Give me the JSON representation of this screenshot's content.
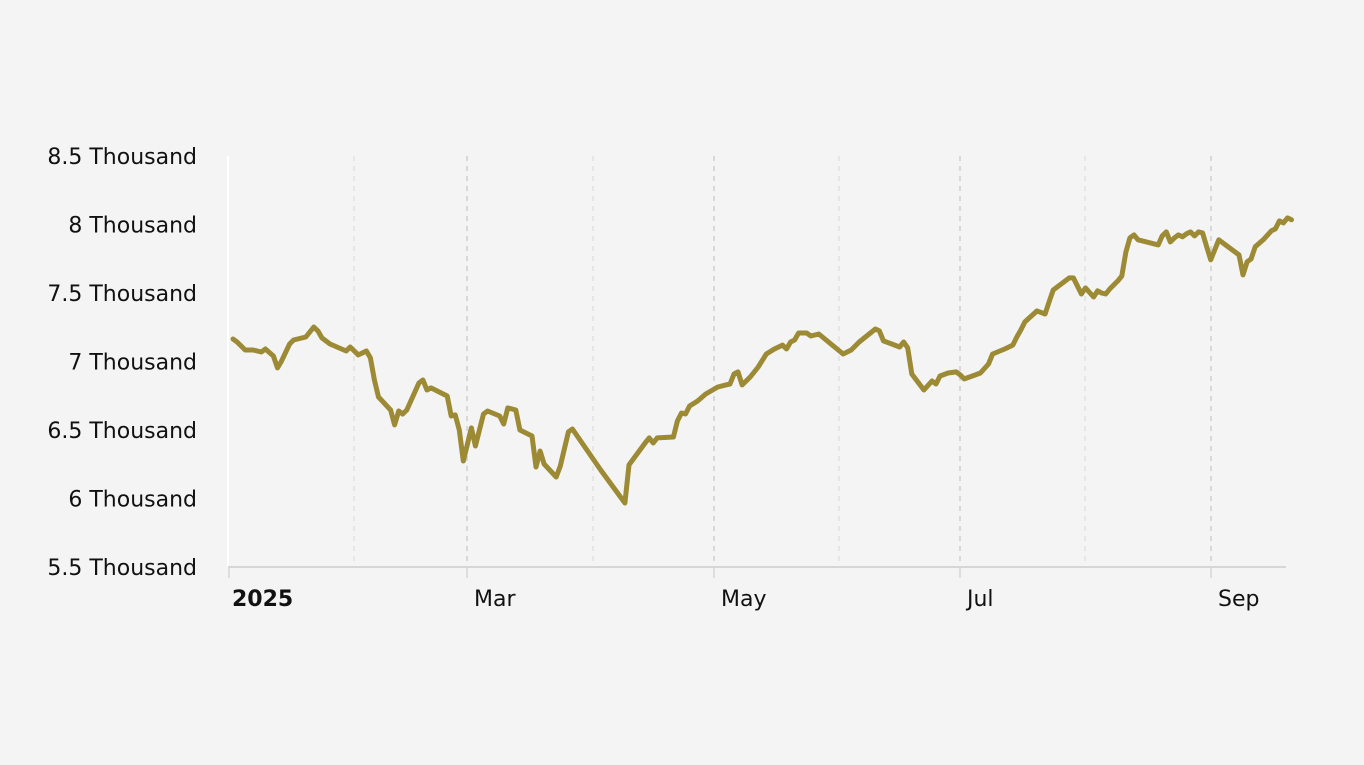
{
  "chart_data": {
    "type": "line",
    "title": "",
    "xlabel": "",
    "ylabel": "",
    "ylim": [
      5500,
      8500
    ],
    "xlim": [
      "2025-01-01",
      "2025-09-22"
    ],
    "grid": "vertical dashed",
    "line_color": "#9c8a34",
    "y_ticks": [
      {
        "value": 5500,
        "label": "5.5 Thousand"
      },
      {
        "value": 6000,
        "label": "6 Thousand"
      },
      {
        "value": 6500,
        "label": "6.5 Thousand"
      },
      {
        "value": 7000,
        "label": "7 Thousand"
      },
      {
        "value": 7500,
        "label": "7.5 Thousand"
      },
      {
        "value": 8000,
        "label": "8 Thousand"
      },
      {
        "value": 8500,
        "label": "8.5 Thousand"
      }
    ],
    "x_ticks": [
      {
        "date": "2025-01-01",
        "label": "2025",
        "bold": true
      },
      {
        "date": "2025-02-01",
        "label": ""
      },
      {
        "date": "2025-03-01",
        "label": "Mar"
      },
      {
        "date": "2025-04-01",
        "label": ""
      },
      {
        "date": "2025-05-01",
        "label": "May"
      },
      {
        "date": "2025-06-01",
        "label": ""
      },
      {
        "date": "2025-07-01",
        "label": "Jul"
      },
      {
        "date": "2025-08-01",
        "label": ""
      },
      {
        "date": "2025-09-01",
        "label": "Sep"
      }
    ],
    "series": [
      {
        "points": [
          [
            "2025-01-02",
            7164
          ],
          [
            "2025-01-03",
            7142
          ],
          [
            "2025-01-05",
            7084
          ],
          [
            "2025-01-07",
            7084
          ],
          [
            "2025-01-09",
            7069
          ],
          [
            "2025-01-10",
            7091
          ],
          [
            "2025-01-12",
            7040
          ],
          [
            "2025-01-13",
            6953
          ],
          [
            "2025-01-14",
            7003
          ],
          [
            "2025-01-16",
            7128
          ],
          [
            "2025-01-17",
            7157
          ],
          [
            "2025-01-20",
            7179
          ],
          [
            "2025-01-22",
            7252
          ],
          [
            "2025-01-23",
            7223
          ],
          [
            "2025-01-24",
            7172
          ],
          [
            "2025-01-26",
            7128
          ],
          [
            "2025-01-30",
            7077
          ],
          [
            "2025-01-31",
            7106
          ],
          [
            "2025-02-02",
            7048
          ],
          [
            "2025-02-04",
            7077
          ],
          [
            "2025-02-05",
            7026
          ],
          [
            "2025-02-06",
            6865
          ],
          [
            "2025-02-07",
            6741
          ],
          [
            "2025-02-10",
            6646
          ],
          [
            "2025-02-11",
            6537
          ],
          [
            "2025-02-12",
            6639
          ],
          [
            "2025-02-13",
            6617
          ],
          [
            "2025-02-14",
            6646
          ],
          [
            "2025-02-17",
            6843
          ],
          [
            "2025-02-18",
            6865
          ],
          [
            "2025-02-19",
            6792
          ],
          [
            "2025-02-20",
            6807
          ],
          [
            "2025-02-24",
            6748
          ],
          [
            "2025-02-25",
            6602
          ],
          [
            "2025-02-26",
            6610
          ],
          [
            "2025-02-27",
            6500
          ],
          [
            "2025-02-28",
            6274
          ],
          [
            "2025-03-02",
            6515
          ],
          [
            "2025-03-03",
            6383
          ],
          [
            "2025-03-05",
            6617
          ],
          [
            "2025-03-06",
            6639
          ],
          [
            "2025-03-09",
            6602
          ],
          [
            "2025-03-10",
            6544
          ],
          [
            "2025-03-11",
            6661
          ],
          [
            "2025-03-13",
            6646
          ],
          [
            "2025-03-14",
            6500
          ],
          [
            "2025-03-17",
            6456
          ],
          [
            "2025-03-18",
            6230
          ],
          [
            "2025-03-19",
            6347
          ],
          [
            "2025-03-20",
            6252
          ],
          [
            "2025-03-23",
            6157
          ],
          [
            "2025-03-24",
            6237
          ],
          [
            "2025-03-26",
            6486
          ],
          [
            "2025-03-27",
            6507
          ],
          [
            "2025-04-03",
            6208
          ],
          [
            "2025-04-09",
            5967
          ],
          [
            "2025-04-10",
            6245
          ],
          [
            "2025-04-14",
            6405
          ],
          [
            "2025-04-15",
            6442
          ],
          [
            "2025-04-16",
            6405
          ],
          [
            "2025-04-17",
            6442
          ],
          [
            "2025-04-21",
            6449
          ],
          [
            "2025-04-22",
            6566
          ],
          [
            "2025-04-23",
            6624
          ],
          [
            "2025-04-24",
            6617
          ],
          [
            "2025-04-25",
            6675
          ],
          [
            "2025-04-27",
            6712
          ],
          [
            "2025-04-29",
            6763
          ],
          [
            "2025-05-02",
            6814
          ],
          [
            "2025-05-04",
            6829
          ],
          [
            "2025-05-05",
            6836
          ],
          [
            "2025-05-06",
            6909
          ],
          [
            "2025-05-07",
            6924
          ],
          [
            "2025-05-08",
            6829
          ],
          [
            "2025-05-10",
            6887
          ],
          [
            "2025-05-12",
            6960
          ],
          [
            "2025-05-14",
            7055
          ],
          [
            "2025-05-16",
            7091
          ],
          [
            "2025-05-18",
            7120
          ],
          [
            "2025-05-19",
            7091
          ],
          [
            "2025-05-20",
            7142
          ],
          [
            "2025-05-21",
            7157
          ],
          [
            "2025-05-22",
            7208
          ],
          [
            "2025-05-24",
            7208
          ],
          [
            "2025-05-25",
            7186
          ],
          [
            "2025-05-27",
            7201
          ],
          [
            "2025-06-02",
            7055
          ],
          [
            "2025-06-04",
            7084
          ],
          [
            "2025-06-06",
            7142
          ],
          [
            "2025-06-10",
            7237
          ],
          [
            "2025-06-11",
            7223
          ],
          [
            "2025-06-12",
            7150
          ],
          [
            "2025-06-16",
            7106
          ],
          [
            "2025-06-17",
            7142
          ],
          [
            "2025-06-18",
            7099
          ],
          [
            "2025-06-19",
            6909
          ],
          [
            "2025-06-22",
            6792
          ],
          [
            "2025-06-24",
            6858
          ],
          [
            "2025-06-25",
            6836
          ],
          [
            "2025-06-26",
            6894
          ],
          [
            "2025-06-28",
            6916
          ],
          [
            "2025-06-30",
            6924
          ],
          [
            "2025-07-01",
            6902
          ],
          [
            "2025-07-02",
            6873
          ],
          [
            "2025-07-04",
            6894
          ],
          [
            "2025-07-06",
            6916
          ],
          [
            "2025-07-08",
            6982
          ],
          [
            "2025-07-09",
            7055
          ],
          [
            "2025-07-12",
            7091
          ],
          [
            "2025-07-14",
            7120
          ],
          [
            "2025-07-15",
            7179
          ],
          [
            "2025-07-16",
            7230
          ],
          [
            "2025-07-17",
            7289
          ],
          [
            "2025-07-20",
            7369
          ],
          [
            "2025-07-22",
            7347
          ],
          [
            "2025-07-23",
            7435
          ],
          [
            "2025-07-24",
            7522
          ],
          [
            "2025-07-25",
            7544
          ],
          [
            "2025-07-28",
            7610
          ],
          [
            "2025-07-29",
            7610
          ],
          [
            "2025-07-31",
            7493
          ],
          [
            "2025-08-01",
            7537
          ],
          [
            "2025-08-03",
            7471
          ],
          [
            "2025-08-04",
            7515
          ],
          [
            "2025-08-05",
            7500
          ],
          [
            "2025-08-06",
            7493
          ],
          [
            "2025-08-07",
            7529
          ],
          [
            "2025-08-09",
            7588
          ],
          [
            "2025-08-10",
            7624
          ],
          [
            "2025-08-11",
            7800
          ],
          [
            "2025-08-12",
            7902
          ],
          [
            "2025-08-13",
            7924
          ],
          [
            "2025-08-14",
            7888
          ],
          [
            "2025-08-19",
            7851
          ],
          [
            "2025-08-20",
            7917
          ],
          [
            "2025-08-21",
            7946
          ],
          [
            "2025-08-22",
            7873
          ],
          [
            "2025-08-23",
            7902
          ],
          [
            "2025-08-24",
            7924
          ],
          [
            "2025-08-25",
            7910
          ],
          [
            "2025-08-26",
            7932
          ],
          [
            "2025-08-27",
            7946
          ],
          [
            "2025-08-28",
            7917
          ],
          [
            "2025-08-29",
            7946
          ],
          [
            "2025-08-30",
            7939
          ],
          [
            "2025-08-31",
            7837
          ],
          [
            "2025-09-01",
            7742
          ],
          [
            "2025-09-03",
            7888
          ],
          [
            "2025-09-04",
            7866
          ],
          [
            "2025-09-08",
            7778
          ],
          [
            "2025-09-09",
            7632
          ],
          [
            "2025-09-10",
            7727
          ],
          [
            "2025-09-11",
            7749
          ],
          [
            "2025-09-12",
            7837
          ],
          [
            "2025-09-14",
            7888
          ],
          [
            "2025-09-16",
            7953
          ],
          [
            "2025-09-17",
            7968
          ],
          [
            "2025-09-18",
            8026
          ],
          [
            "2025-09-19",
            8012
          ],
          [
            "2025-09-20",
            8048
          ],
          [
            "2025-09-21",
            8034
          ]
        ]
      }
    ]
  }
}
